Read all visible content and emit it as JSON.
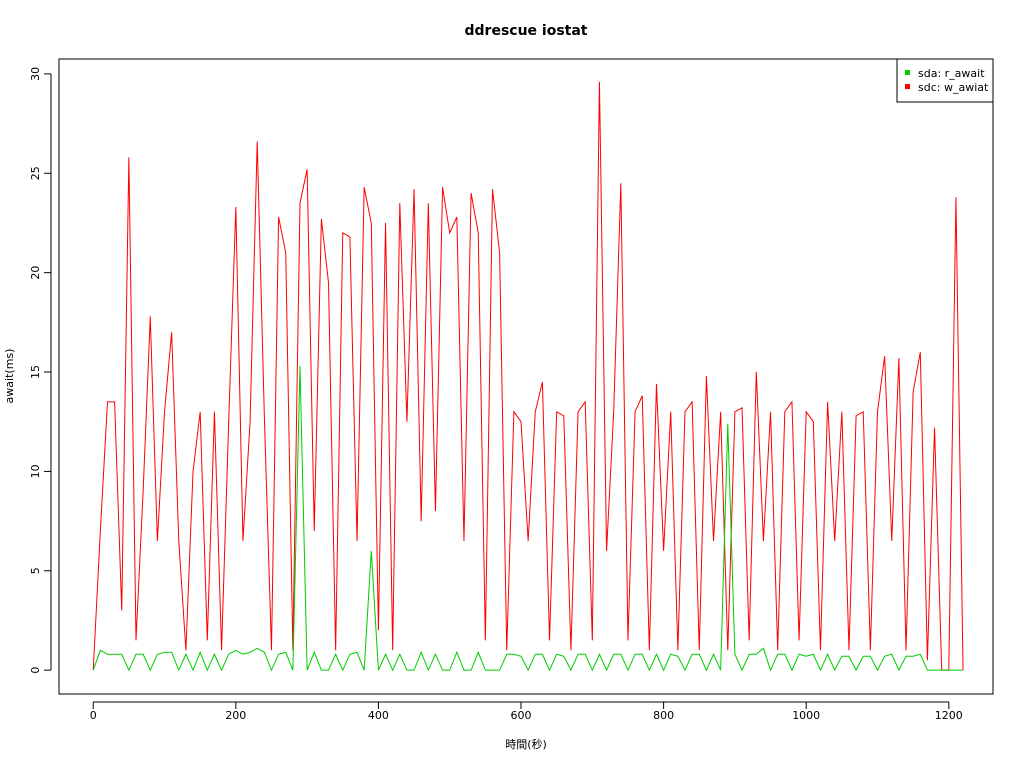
{
  "chart_data": {
    "type": "line",
    "title": "ddrescue iostat",
    "x_label": "時間(秒)",
    "y_label": "await(ms)",
    "x": [
      0,
      10,
      20,
      30,
      40,
      50,
      60,
      70,
      80,
      90,
      100,
      110,
      120,
      130,
      140,
      150,
      160,
      170,
      180,
      190,
      200,
      210,
      220,
      230,
      240,
      250,
      260,
      270,
      280,
      290,
      300,
      310,
      320,
      330,
      340,
      350,
      360,
      370,
      380,
      390,
      400,
      410,
      420,
      430,
      440,
      450,
      460,
      470,
      480,
      490,
      500,
      510,
      520,
      530,
      540,
      550,
      560,
      570,
      580,
      590,
      600,
      610,
      620,
      630,
      640,
      650,
      660,
      670,
      680,
      690,
      700,
      710,
      720,
      730,
      740,
      750,
      760,
      770,
      780,
      790,
      800,
      810,
      820,
      830,
      840,
      850,
      860,
      870,
      880,
      890,
      900,
      910,
      920,
      930,
      940,
      950,
      960,
      970,
      980,
      990,
      1000,
      1010,
      1020,
      1030,
      1040,
      1050,
      1060,
      1070,
      1080,
      1090,
      1100,
      1110,
      1120,
      1130,
      1140,
      1150,
      1160,
      1170,
      1180,
      1190,
      1200,
      1210,
      1220
    ],
    "series": [
      {
        "name": "sda: r_await",
        "color": "#00cc00",
        "values": [
          0,
          1,
          0.8,
          0.8,
          0.8,
          0,
          0.8,
          0.8,
          0,
          0.8,
          0.9,
          0.9,
          0,
          0.8,
          0,
          0.9,
          0,
          0.8,
          0,
          0.8,
          1,
          0.8,
          0.9,
          1.1,
          0.9,
          0,
          0.8,
          0.9,
          0,
          15.3,
          0,
          0.9,
          0,
          0,
          0.8,
          0,
          0.8,
          0.9,
          0,
          6,
          0,
          0.8,
          0,
          0.8,
          0,
          0,
          0.9,
          0,
          0.8,
          0,
          0,
          0.9,
          0,
          0,
          0.9,
          0,
          0,
          0,
          0.8,
          0.8,
          0.7,
          0,
          0.8,
          0.8,
          0,
          0.8,
          0.7,
          0,
          0.8,
          0.8,
          0,
          0.8,
          0,
          0.8,
          0.8,
          0,
          0.8,
          0.8,
          0,
          0.8,
          0,
          0.8,
          0.7,
          0,
          0.8,
          0.8,
          0,
          0.8,
          0,
          12.4,
          0.8,
          0,
          0.8,
          0.8,
          1.1,
          0,
          0.8,
          0.8,
          0,
          0.8,
          0.7,
          0.8,
          0,
          0.8,
          0,
          0.7,
          0.7,
          0,
          0.7,
          0.7,
          0,
          0.7,
          0.8,
          0,
          0.7,
          0.7,
          0.8,
          0,
          0,
          0,
          0,
          0,
          0
        ]
      },
      {
        "name": "sdc: w_awiat",
        "color": "#ff0000",
        "values": [
          0,
          7,
          13.5,
          13.5,
          3,
          25.8,
          1.5,
          9,
          17.8,
          6.5,
          13,
          17,
          6.5,
          1,
          10,
          13,
          1.5,
          13,
          1,
          12.5,
          23.3,
          6.5,
          12.5,
          26.6,
          12.8,
          1,
          22.8,
          21,
          1,
          23.5,
          25.2,
          7,
          22.7,
          19.5,
          1,
          22,
          21.8,
          6.5,
          24.3,
          22.5,
          2,
          22.5,
          1,
          23.5,
          12.5,
          24.2,
          7.5,
          23.5,
          8,
          24.3,
          22,
          22.8,
          6.5,
          24,
          22,
          1.5,
          24.2,
          21,
          1,
          13,
          12.5,
          6.5,
          13,
          14.5,
          1.5,
          13,
          12.8,
          1,
          13,
          13.5,
          1.5,
          29.6,
          6,
          13,
          24.5,
          1.5,
          13,
          13.8,
          1,
          14.4,
          6,
          13,
          1,
          13,
          13.5,
          1,
          14.8,
          6.5,
          13,
          1,
          13,
          13.2,
          1.5,
          15,
          6.5,
          13,
          1,
          13,
          13.5,
          1.5,
          13,
          12.5,
          1,
          13.5,
          6.5,
          13,
          1,
          12.8,
          13,
          1,
          13,
          15.8,
          6.5,
          15.7,
          1,
          14,
          16,
          0.5,
          12.2,
          0,
          0,
          23.8,
          0
        ]
      }
    ],
    "xlim": [
      -48,
      1262
    ],
    "ylim": [
      -1.2,
      30.75
    ],
    "xticks": [
      0,
      200,
      400,
      600,
      800,
      1000,
      1200
    ],
    "yticks": [
      0,
      5,
      10,
      15,
      20,
      25,
      30
    ],
    "legend": "top-right"
  }
}
